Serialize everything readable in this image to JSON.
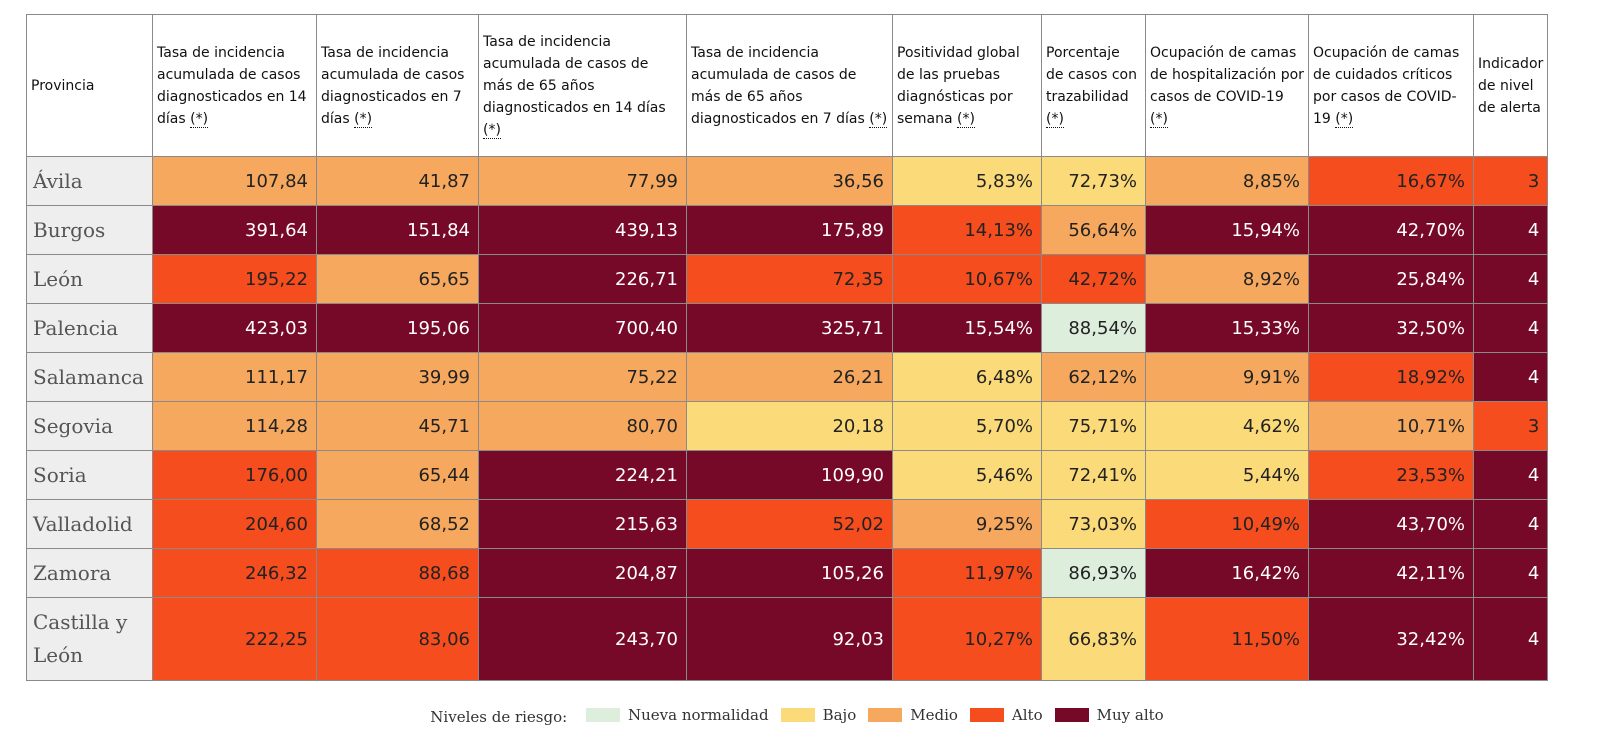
{
  "level_colors": {
    "1": "#ddeedd",
    "2": "#fbda79",
    "3": "#f5a85e",
    "4": "#f54d1e",
    "5": "#760828"
  },
  "table": {
    "headers": [
      {
        "text": "Provincia",
        "mark": ""
      },
      {
        "text": "Tasa de incidencia acumulada de casos diagnosticados en 14 días",
        "mark": "(*)"
      },
      {
        "text": "Tasa de incidencia acumulada de casos diagnosticados en 7 días",
        "mark": "(*)"
      },
      {
        "text": "Tasa de incidencia acumulada de casos de más de 65 años diagnosticados en 14 días",
        "mark": "(*)"
      },
      {
        "text": "Tasa de incidencia acumulada de casos de más de 65 años diagnosticados en 7 días",
        "mark": "(*)"
      },
      {
        "text": "Positividad global de las pruebas diagnósticas por semana",
        "mark": "(*)"
      },
      {
        "text": "Porcentaje de casos con trazabilidad",
        "mark": "(*)"
      },
      {
        "text": "Ocupación de camas de hospitalización por casos de COVID-19",
        "mark": "(*)"
      },
      {
        "text": "Ocupación de camas de cuidados críticos por casos de COVID-19",
        "mark": "(*)"
      },
      {
        "text": "Indicador de nivel de alerta",
        "mark": ""
      }
    ],
    "rows": [
      {
        "province": "Ávila",
        "cells": [
          {
            "v": "107,84",
            "l": 3
          },
          {
            "v": "41,87",
            "l": 3
          },
          {
            "v": "77,99",
            "l": 3
          },
          {
            "v": "36,56",
            "l": 3
          },
          {
            "v": "5,83%",
            "l": 2
          },
          {
            "v": "72,73%",
            "l": 2
          },
          {
            "v": "8,85%",
            "l": 3
          },
          {
            "v": "16,67%",
            "l": 4
          },
          {
            "v": "3",
            "l": 4
          }
        ]
      },
      {
        "province": "Burgos",
        "cells": [
          {
            "v": "391,64",
            "l": 5
          },
          {
            "v": "151,84",
            "l": 5
          },
          {
            "v": "439,13",
            "l": 5
          },
          {
            "v": "175,89",
            "l": 5
          },
          {
            "v": "14,13%",
            "l": 4
          },
          {
            "v": "56,64%",
            "l": 3
          },
          {
            "v": "15,94%",
            "l": 5
          },
          {
            "v": "42,70%",
            "l": 5
          },
          {
            "v": "4",
            "l": 5
          }
        ]
      },
      {
        "province": "León",
        "cells": [
          {
            "v": "195,22",
            "l": 4
          },
          {
            "v": "65,65",
            "l": 3
          },
          {
            "v": "226,71",
            "l": 5
          },
          {
            "v": "72,35",
            "l": 4
          },
          {
            "v": "10,67%",
            "l": 4
          },
          {
            "v": "42,72%",
            "l": 4
          },
          {
            "v": "8,92%",
            "l": 3
          },
          {
            "v": "25,84%",
            "l": 5
          },
          {
            "v": "4",
            "l": 5
          }
        ]
      },
      {
        "province": "Palencia",
        "cells": [
          {
            "v": "423,03",
            "l": 5
          },
          {
            "v": "195,06",
            "l": 5
          },
          {
            "v": "700,40",
            "l": 5
          },
          {
            "v": "325,71",
            "l": 5
          },
          {
            "v": "15,54%",
            "l": 5
          },
          {
            "v": "88,54%",
            "l": 1
          },
          {
            "v": "15,33%",
            "l": 5
          },
          {
            "v": "32,50%",
            "l": 5
          },
          {
            "v": "4",
            "l": 5
          }
        ]
      },
      {
        "province": "Salamanca",
        "cells": [
          {
            "v": "111,17",
            "l": 3
          },
          {
            "v": "39,99",
            "l": 3
          },
          {
            "v": "75,22",
            "l": 3
          },
          {
            "v": "26,21",
            "l": 3
          },
          {
            "v": "6,48%",
            "l": 2
          },
          {
            "v": "62,12%",
            "l": 3
          },
          {
            "v": "9,91%",
            "l": 3
          },
          {
            "v": "18,92%",
            "l": 4
          },
          {
            "v": "4",
            "l": 5
          }
        ]
      },
      {
        "province": "Segovia",
        "cells": [
          {
            "v": "114,28",
            "l": 3
          },
          {
            "v": "45,71",
            "l": 3
          },
          {
            "v": "80,70",
            "l": 3
          },
          {
            "v": "20,18",
            "l": 2
          },
          {
            "v": "5,70%",
            "l": 2
          },
          {
            "v": "75,71%",
            "l": 2
          },
          {
            "v": "4,62%",
            "l": 2
          },
          {
            "v": "10,71%",
            "l": 3
          },
          {
            "v": "3",
            "l": 4
          }
        ]
      },
      {
        "province": "Soria",
        "cells": [
          {
            "v": "176,00",
            "l": 4
          },
          {
            "v": "65,44",
            "l": 3
          },
          {
            "v": "224,21",
            "l": 5
          },
          {
            "v": "109,90",
            "l": 5
          },
          {
            "v": "5,46%",
            "l": 2
          },
          {
            "v": "72,41%",
            "l": 2
          },
          {
            "v": "5,44%",
            "l": 2
          },
          {
            "v": "23,53%",
            "l": 4
          },
          {
            "v": "4",
            "l": 5
          }
        ]
      },
      {
        "province": "Valladolid",
        "cells": [
          {
            "v": "204,60",
            "l": 4
          },
          {
            "v": "68,52",
            "l": 3
          },
          {
            "v": "215,63",
            "l": 5
          },
          {
            "v": "52,02",
            "l": 4
          },
          {
            "v": "9,25%",
            "l": 3
          },
          {
            "v": "73,03%",
            "l": 2
          },
          {
            "v": "10,49%",
            "l": 4
          },
          {
            "v": "43,70%",
            "l": 5
          },
          {
            "v": "4",
            "l": 5
          }
        ]
      },
      {
        "province": "Zamora",
        "cells": [
          {
            "v": "246,32",
            "l": 4
          },
          {
            "v": "88,68",
            "l": 4
          },
          {
            "v": "204,87",
            "l": 5
          },
          {
            "v": "105,26",
            "l": 5
          },
          {
            "v": "11,97%",
            "l": 4
          },
          {
            "v": "86,93%",
            "l": 1
          },
          {
            "v": "16,42%",
            "l": 5
          },
          {
            "v": "42,11%",
            "l": 5
          },
          {
            "v": "4",
            "l": 5
          }
        ]
      },
      {
        "province": "Castilla y León",
        "cells": [
          {
            "v": "222,25",
            "l": 4
          },
          {
            "v": "83,06",
            "l": 4
          },
          {
            "v": "243,70",
            "l": 5
          },
          {
            "v": "92,03",
            "l": 5
          },
          {
            "v": "10,27%",
            "l": 4
          },
          {
            "v": "66,83%",
            "l": 2
          },
          {
            "v": "11,50%",
            "l": 4
          },
          {
            "v": "32,42%",
            "l": 5
          },
          {
            "v": "4",
            "l": 5
          }
        ]
      }
    ]
  },
  "legend": {
    "title": "Niveles de riesgo:",
    "items": [
      {
        "label": "Nueva normalidad",
        "level": 1
      },
      {
        "label": "Bajo",
        "level": 2
      },
      {
        "label": "Medio",
        "level": 3
      },
      {
        "label": "Alto",
        "level": 4
      },
      {
        "label": "Muy alto",
        "level": 5
      }
    ]
  }
}
